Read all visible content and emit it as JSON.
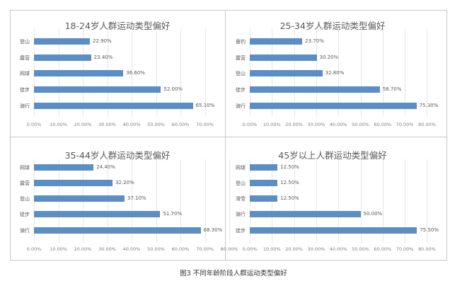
{
  "caption": "图3 不同年龄阶段人群运动类型偏好",
  "chart_data": [
    {
      "type": "bar",
      "orientation": "horizontal",
      "title": "18-24岁人群运动类型偏好",
      "categories": [
        "登山",
        "露营",
        "网球",
        "徒步",
        "骑行"
      ],
      "values": [
        22.9,
        23.4,
        36.6,
        52.0,
        65.1
      ],
      "labels": [
        "22.90%",
        "23.40%",
        "36.60%",
        "52.00%",
        "65.10%"
      ],
      "xlim": [
        0,
        70
      ],
      "ticks": [
        "0.00%",
        "10.00%",
        "20.00%",
        "30.00%",
        "40.00%",
        "50.00%",
        "60.00%",
        "70.00%"
      ],
      "grid": true,
      "color": "#5b8ec4"
    },
    {
      "type": "bar",
      "orientation": "horizontal",
      "title": "25-34岁人群运动类型偏好",
      "categories": [
        "垂钓",
        "露营",
        "登山",
        "徒步",
        "骑行"
      ],
      "values": [
        23.7,
        30.2,
        32.8,
        58.7,
        75.3
      ],
      "labels": [
        "23.70%",
        "30.20%",
        "32.80%",
        "58.70%",
        "75.30%"
      ],
      "xlim": [
        0,
        80
      ],
      "ticks": [
        "0.00%",
        "10.00%",
        "20.00%",
        "30.00%",
        "40.00%",
        "50.00%",
        "60.00%",
        "70.00%",
        "80.00%"
      ],
      "grid": true,
      "color": "#5b8ec4"
    },
    {
      "type": "bar",
      "orientation": "horizontal",
      "title": "35-44岁人群运动类型偏好",
      "categories": [
        "网球",
        "露营",
        "登山",
        "徒步",
        "骑行"
      ],
      "values": [
        24.4,
        32.2,
        37.1,
        51.7,
        68.3
      ],
      "labels": [
        "24.40%",
        "32.20%",
        "37.10%",
        "51.70%",
        "68.30%"
      ],
      "xlim": [
        0,
        80
      ],
      "ticks": [
        "0.00%",
        "10.00%",
        "20.00%",
        "30.00%",
        "40.00%",
        "50.00%",
        "60.00%",
        "70.00%",
        "80.00%"
      ],
      "grid": true,
      "color": "#5b8ec4"
    },
    {
      "type": "bar",
      "orientation": "horizontal",
      "title": "45岁以上人群运动类型偏好",
      "categories": [
        "网球",
        "登山",
        "滑雪",
        "骑行",
        "徒步"
      ],
      "values": [
        12.5,
        12.5,
        12.5,
        50.0,
        75.5
      ],
      "labels": [
        "12.50%",
        "12.50%",
        "12.50%",
        "50.00%",
        "75.50%"
      ],
      "xlim": [
        0,
        80
      ],
      "ticks": [
        "0.00%",
        "10.00%",
        "20.00%",
        "30.00%",
        "40.00%",
        "50.00%",
        "60.00%",
        "70.00%",
        "80.00%"
      ],
      "grid": true,
      "color": "#5b8ec4"
    }
  ]
}
